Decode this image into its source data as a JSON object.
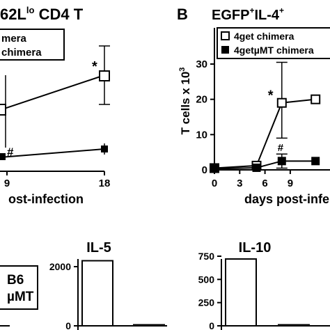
{
  "panel_a": {
    "title_main": "62L",
    "title_sup": "lo",
    "title_rest": " CD4 T",
    "legend": [
      "mera",
      "chimera"
    ],
    "xlabel": "ost-infection",
    "xticks": [
      "9",
      "18"
    ],
    "star": "*",
    "hash": "#"
  },
  "panel_b": {
    "letter": "B",
    "title_a": "EGFP",
    "title_sup1": "+",
    "title_b": "IL-4",
    "title_sup2": "+",
    "ylabel": "T cells x 10",
    "ylabel_sup": "3",
    "yticks": [
      "0",
      "10",
      "20",
      "30"
    ],
    "xticks": [
      "0",
      "3",
      "6",
      "9"
    ],
    "xlabel": "days post-infe",
    "legend": [
      "4get chimera",
      "4getµMT chimera"
    ],
    "star": "*",
    "hash": "#"
  },
  "panel_c": {
    "legend": [
      "B6",
      "µMT"
    ]
  },
  "panel_d": {
    "title": "IL-5",
    "yticks": [
      "0",
      "2000"
    ]
  },
  "panel_e": {
    "title": "IL-10",
    "yticks": [
      "0",
      "250",
      "500",
      "750"
    ]
  },
  "chart_data": [
    {
      "type": "line",
      "title": "62Llo CD4 T",
      "xlabel": "ost-infection",
      "x": [
        8,
        18
      ],
      "series": [
        {
          "name": "chimera (open square, partially visible)",
          "values": [
            null,
            null
          ]
        },
        {
          "name": "chimera (filled square, partially visible)",
          "values": [
            null,
            null
          ]
        }
      ]
    },
    {
      "type": "line",
      "title": "EGFP+IL-4+",
      "xlabel": "days post-infe",
      "ylabel": "T cells x 10^3",
      "ylim": [
        0,
        35
      ],
      "x": [
        0,
        5,
        8,
        12
      ],
      "series": [
        {
          "name": "4get chimera",
          "values": [
            0.5,
            1.2,
            19,
            20
          ]
        },
        {
          "name": "4getµMT chimera",
          "values": [
            0.3,
            0.6,
            2.5,
            2.5
          ]
        }
      ]
    },
    {
      "type": "bar",
      "title": "IL-5",
      "ylim": [
        0,
        2300
      ],
      "categories": [
        "B6",
        "µMT"
      ],
      "values": [
        2200,
        30
      ]
    },
    {
      "type": "bar",
      "title": "IL-10",
      "ylim": [
        0,
        800
      ],
      "categories": [
        "B6",
        "µMT"
      ],
      "values": [
        720,
        5
      ]
    }
  ]
}
